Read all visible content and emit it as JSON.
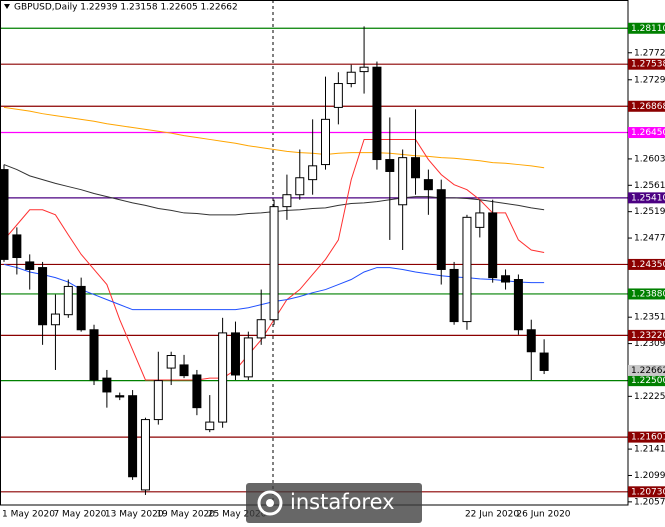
{
  "chart_data": {
    "type": "candlestick",
    "title": "GBPUSD,Daily  1.22939 1.23158 1.22605 1.22662",
    "watermark": "instaforex",
    "categories": [
      "1 May 2020",
      null,
      null,
      null,
      "7 May 2020",
      null,
      null,
      null,
      "13 May 2020",
      null,
      null,
      null,
      "19 May 2020",
      null,
      null,
      null,
      "25 May 2020",
      null,
      null,
      null,
      null,
      null,
      null,
      null,
      null,
      null,
      null,
      null,
      null,
      null,
      null,
      null,
      null,
      null,
      null,
      null,
      "22 Jun 2020",
      null,
      null,
      null,
      "26 Jun 2020",
      null,
      null
    ],
    "open": [
      1.2586,
      1.2482,
      1.2439,
      1.243,
      1.2339,
      1.2355,
      1.24,
      1.2331,
      1.2254,
      1.2226,
      1.2226,
      1.2076,
      1.2188,
      1.227,
      1.2275,
      1.2259,
      1.2172,
      1.2184,
      1.2326,
      1.2256,
      1.2318,
      1.2347,
      1.2527,
      1.2546,
      1.257,
      1.2594,
      1.2685,
      1.2723,
      1.2742,
      1.2749,
      1.2602,
      1.253,
      1.2605,
      1.257,
      1.2554,
      1.2427,
      1.2344,
      1.2494,
      1.2517,
      1.2417,
      1.2411,
      1.2331,
      1.22939
    ],
    "high": [
      1.2594,
      1.2494,
      1.2451,
      1.2439,
      1.2387,
      1.2411,
      1.2414,
      1.2339,
      1.2267,
      1.2231,
      1.2235,
      1.2191,
      1.2296,
      1.2296,
      1.2291,
      1.2267,
      1.2227,
      1.235,
      1.2344,
      1.2328,
      1.2395,
      1.2538,
      1.2578,
      1.2618,
      1.2666,
      1.2734,
      1.2741,
      1.2753,
      1.2814,
      1.2758,
      1.2669,
      1.2618,
      1.2682,
      1.2586,
      1.257,
      1.2439,
      1.2514,
      1.2538,
      1.2538,
      1.2427,
      1.2419,
      1.2347,
      1.23158
    ],
    "low": [
      1.2439,
      1.2419,
      1.2395,
      1.2307,
      1.2267,
      1.235,
      1.2328,
      1.2243,
      1.2207,
      1.2219,
      1.2092,
      1.2068,
      1.218,
      1.2243,
      1.2254,
      1.2195,
      1.2168,
      1.2175,
      1.2251,
      1.2251,
      1.2307,
      1.2339,
      1.2506,
      1.2538,
      1.2546,
      1.2586,
      1.2658,
      1.2717,
      1.2707,
      1.2586,
      1.2474,
      1.2458,
      1.2546,
      1.2514,
      1.2403,
      1.2339,
      1.2331,
      1.2478,
      1.2406,
      1.2395,
      1.2323,
      1.2251,
      1.22605
    ],
    "close": [
      1.2443,
      1.2446,
      1.2427,
      1.2339,
      1.2356,
      1.24,
      1.2331,
      1.2251,
      1.2232,
      1.2224,
      1.2097,
      1.2188,
      1.225,
      1.229,
      1.2258,
      1.2207,
      1.2184,
      1.2326,
      1.2259,
      1.2318,
      1.2347,
      1.2527,
      1.2546,
      1.2573,
      1.2592,
      1.2666,
      1.2723,
      1.2741,
      1.2749,
      1.2602,
      1.2583,
      1.2605,
      1.2573,
      1.2554,
      1.2427,
      1.2344,
      1.251,
      1.2517,
      1.2414,
      1.2407,
      1.2331,
      1.2296,
      1.22662
    ],
    "up_color": "#ffffff",
    "down_color": "#000000",
    "indicators": [
      {
        "color": "#ffa500",
        "values": [
          1.2685,
          1.2682,
          1.2679,
          1.2675,
          1.2672,
          1.2669,
          1.2666,
          1.2663,
          1.2659,
          1.2656,
          1.2653,
          1.265,
          1.2647,
          1.2644,
          1.264,
          1.2637,
          1.2634,
          1.2631,
          1.2628,
          1.2624,
          1.2621,
          1.2618,
          1.2615,
          1.2613,
          1.2612,
          1.261,
          1.2612,
          1.2613,
          1.2613,
          1.2613,
          1.2612,
          1.261,
          1.2608,
          1.2607,
          1.2605,
          1.2604,
          1.2602,
          1.26,
          1.2597,
          1.2596,
          1.2594,
          1.2592,
          1.2589
        ]
      },
      {
        "color": "#333333",
        "values": [
          1.2594,
          1.2586,
          1.2576,
          1.257,
          1.2564,
          1.2559,
          1.2554,
          1.2548,
          1.2543,
          1.2538,
          1.2533,
          1.2529,
          1.2524,
          1.2521,
          1.2517,
          1.2516,
          1.2514,
          1.2514,
          1.2514,
          1.2516,
          1.2517,
          1.2519,
          1.2521,
          1.2522,
          1.2524,
          1.2525,
          1.2529,
          1.2532,
          1.2533,
          1.2535,
          1.2538,
          1.2541,
          1.2543,
          1.2543,
          1.2541,
          1.2541,
          1.254,
          1.2538,
          1.2535,
          1.2532,
          1.2529,
          1.2525,
          1.2522
        ]
      },
      {
        "color": "#ff3030",
        "values": [
          1.2474,
          1.2498,
          1.2522,
          1.2522,
          1.2514,
          1.2482,
          1.2451,
          1.2427,
          1.2403,
          1.2347,
          1.2299,
          1.2251,
          1.2251,
          1.2251,
          1.2251,
          1.2251,
          1.2254,
          1.2254,
          1.2267,
          1.2291,
          1.2315,
          1.2347,
          1.2379,
          1.2395,
          1.2419,
          1.2443,
          1.2474,
          1.257,
          1.2634,
          1.2634,
          1.2634,
          1.2634,
          1.2634,
          1.2602,
          1.2578,
          1.2562,
          1.2554,
          1.2538,
          1.2517,
          1.2517,
          1.2474,
          1.2458,
          1.2454
        ]
      },
      {
        "color": "#2050ff",
        "values": [
          1.2435,
          1.243,
          1.2423,
          1.2419,
          1.2414,
          1.2407,
          1.2395,
          1.2387,
          1.2379,
          1.2371,
          1.2363,
          1.2363,
          1.2363,
          1.2363,
          1.2363,
          1.2363,
          1.2363,
          1.2363,
          1.2363,
          1.2366,
          1.2371,
          1.2376,
          1.2379,
          1.2384,
          1.239,
          1.2395,
          1.2403,
          1.2411,
          1.2423,
          1.243,
          1.243,
          1.2427,
          1.2423,
          1.242,
          1.2417,
          1.2415,
          1.2414,
          1.2412,
          1.2411,
          1.2409,
          1.2407,
          1.2406,
          1.2406
        ]
      }
    ],
    "ylim": [
      1.2052,
      1.2856
    ],
    "yticks": [
      {
        "value": 1.2772,
        "label": "1.27720"
      },
      {
        "value": 1.2729,
        "label": "1.27290"
      },
      {
        "value": 1.2603,
        "label": "1.26030"
      },
      {
        "value": 1.2561,
        "label": "1.25610"
      },
      {
        "value": 1.2519,
        "label": "1.25190"
      },
      {
        "value": 1.2477,
        "label": "1.24770"
      },
      {
        "value": 1.2351,
        "label": "1.23510"
      },
      {
        "value": 1.2309,
        "label": "1.23090"
      },
      {
        "value": 1.2225,
        "label": "1.22250"
      },
      {
        "value": 1.2141,
        "label": "1.21410"
      },
      {
        "value": 1.2099,
        "label": "1.20990"
      },
      {
        "value": 1.2057,
        "label": "1.20570"
      }
    ],
    "levels": [
      {
        "value": 1.2811,
        "label": "1.28110",
        "color": "#008000"
      },
      {
        "value": 1.27538,
        "label": "1.27538",
        "color": "#8b0000"
      },
      {
        "value": 1.26868,
        "label": "1.26868",
        "color": "#8b0000"
      },
      {
        "value": 1.2645,
        "label": "1.26450",
        "color": "#ff00ff"
      },
      {
        "value": 1.2541,
        "label": "1.25410",
        "color": "#4b0082"
      },
      {
        "value": 1.2435,
        "label": "1.24350",
        "color": "#8b0000"
      },
      {
        "value": 1.2388,
        "label": "1.23880",
        "color": "#008000"
      },
      {
        "value": 1.2322,
        "label": "1.23220",
        "color": "#8b0000"
      },
      {
        "value": 1.225,
        "label": "1.22500",
        "color": "#008000"
      },
      {
        "value": 1.21601,
        "label": "1.21601",
        "color": "#8b0000"
      },
      {
        "value": 1.2073,
        "label": "1.20730",
        "color": "#8b0000"
      }
    ],
    "current_price": 1.22662
  }
}
